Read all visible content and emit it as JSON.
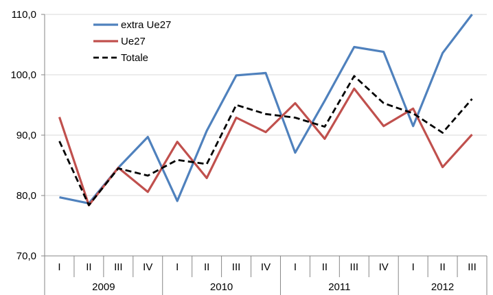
{
  "chart_data": {
    "type": "line",
    "ylim": [
      70,
      110
    ],
    "yticks": [
      "70,0",
      "80,0",
      "90,0",
      "100,0",
      "110,0"
    ],
    "yticks_values": [
      70,
      80,
      90,
      100,
      110
    ],
    "grid": true,
    "legend_position": "top-left",
    "categories": [
      "I",
      "II",
      "III",
      "IV",
      "I",
      "II",
      "III",
      "IV",
      "I",
      "II",
      "III",
      "IV",
      "I",
      "II",
      "III"
    ],
    "years": [
      {
        "label": "2009",
        "span": 4
      },
      {
        "label": "2010",
        "span": 4
      },
      {
        "label": "2011",
        "span": 4
      },
      {
        "label": "2012",
        "span": 3
      }
    ],
    "series": [
      {
        "name": "extra Ue27",
        "color": "#4f81bd",
        "dash": false,
        "values": [
          79.7,
          78.7,
          84.6,
          89.7,
          79.1,
          90.7,
          99.9,
          100.3,
          87.1,
          95.7,
          104.6,
          103.8,
          91.5,
          103.6,
          110.0
        ]
      },
      {
        "name": "Ue27",
        "color": "#c0504d",
        "dash": false,
        "values": [
          93.0,
          78.4,
          84.6,
          80.6,
          88.9,
          82.9,
          92.9,
          90.5,
          95.3,
          89.4,
          97.7,
          91.5,
          94.4,
          84.7,
          90.1
        ]
      },
      {
        "name": "Totale",
        "color": "#000000",
        "dash": true,
        "values": [
          89.0,
          78.4,
          84.5,
          83.3,
          85.9,
          85.2,
          95.0,
          93.5,
          92.9,
          91.4,
          99.8,
          95.3,
          93.6,
          90.4,
          96.0
        ]
      }
    ]
  }
}
